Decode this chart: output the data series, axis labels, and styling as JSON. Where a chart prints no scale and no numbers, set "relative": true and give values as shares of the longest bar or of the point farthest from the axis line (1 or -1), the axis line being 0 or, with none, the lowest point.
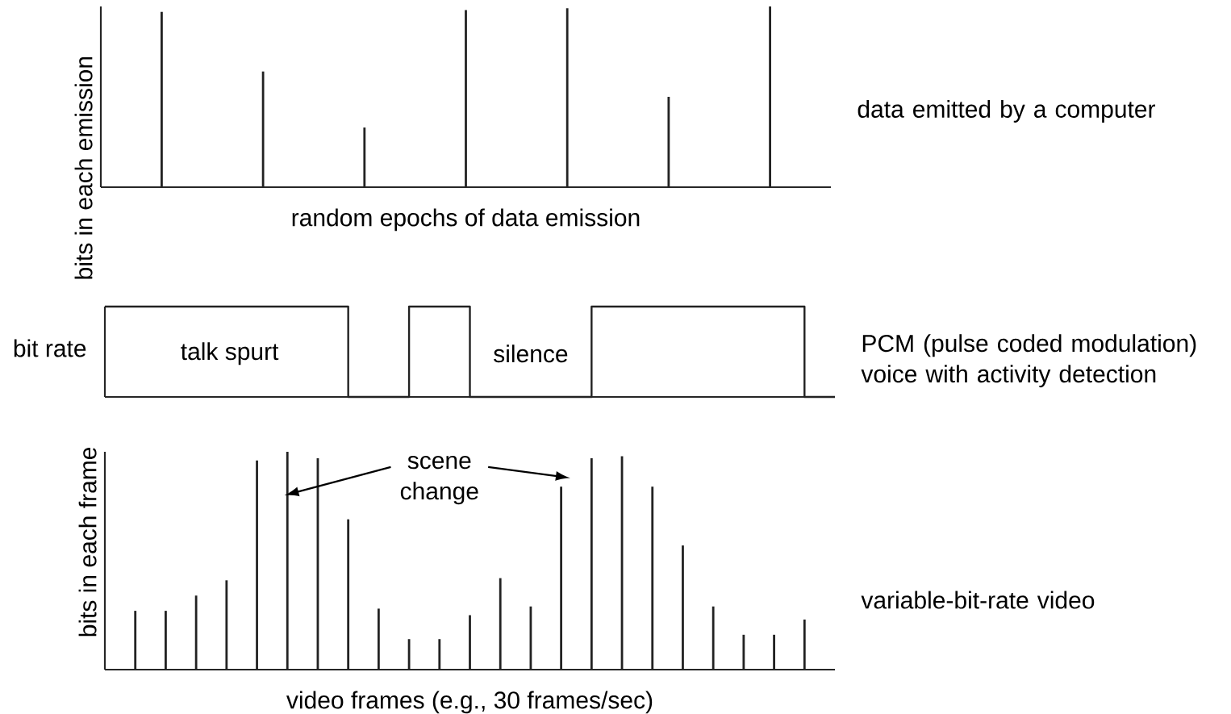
{
  "chart_data": [
    {
      "type": "bar",
      "relative": true,
      "ylabel": "bits in each emission",
      "xlabel": "random epochs of data emission",
      "annotations": [
        "data emitted by a computer"
      ],
      "color": "#222222",
      "categories": [
        null,
        null,
        null,
        null,
        null,
        null,
        null
      ],
      "values": [
        0.97,
        0.64,
        0.33,
        0.98,
        0.99,
        0.5,
        1
      ]
    },
    {
      "type": "step",
      "relative": true,
      "ylabel": "bit rate",
      "annotations": [
        "talk spurt",
        "silence",
        "PCM (pulse coded modulation) voice with activity detection"
      ],
      "color": "#222222",
      "categories": [
        null,
        null,
        null,
        null,
        null,
        null,
        null,
        null,
        null,
        null,
        null,
        null,
        null,
        null,
        null,
        null,
        null,
        null,
        null,
        null,
        null,
        null,
        null,
        null,
        null
      ],
      "values": [
        1,
        1,
        1,
        1,
        1,
        1,
        1,
        1,
        0,
        0,
        1,
        1,
        0,
        0,
        0,
        0,
        1,
        1,
        1,
        1,
        1,
        1,
        1,
        0,
        0
      ]
    },
    {
      "type": "bar",
      "relative": true,
      "ylabel": "bits in each frame",
      "xlabel": "video frames (e.g., 30 frames/sec)",
      "annotations": [
        "scene change",
        "variable-bit-rate video"
      ],
      "color": "#222222",
      "categories": [
        null,
        null,
        null,
        null,
        null,
        null,
        null,
        null,
        null,
        null,
        null,
        null,
        null,
        null,
        null,
        null,
        null,
        null,
        null,
        null,
        null,
        null,
        null
      ],
      "values": [
        0.27,
        0.27,
        0.34,
        0.41,
        0.96,
        1,
        0.97,
        0.69,
        0.28,
        0.14,
        0.14,
        0.25,
        0.42,
        0.29,
        0.84,
        0.97,
        0.98,
        0.84,
        0.57,
        0.29,
        0.16,
        0.16,
        0.23
      ]
    }
  ]
}
